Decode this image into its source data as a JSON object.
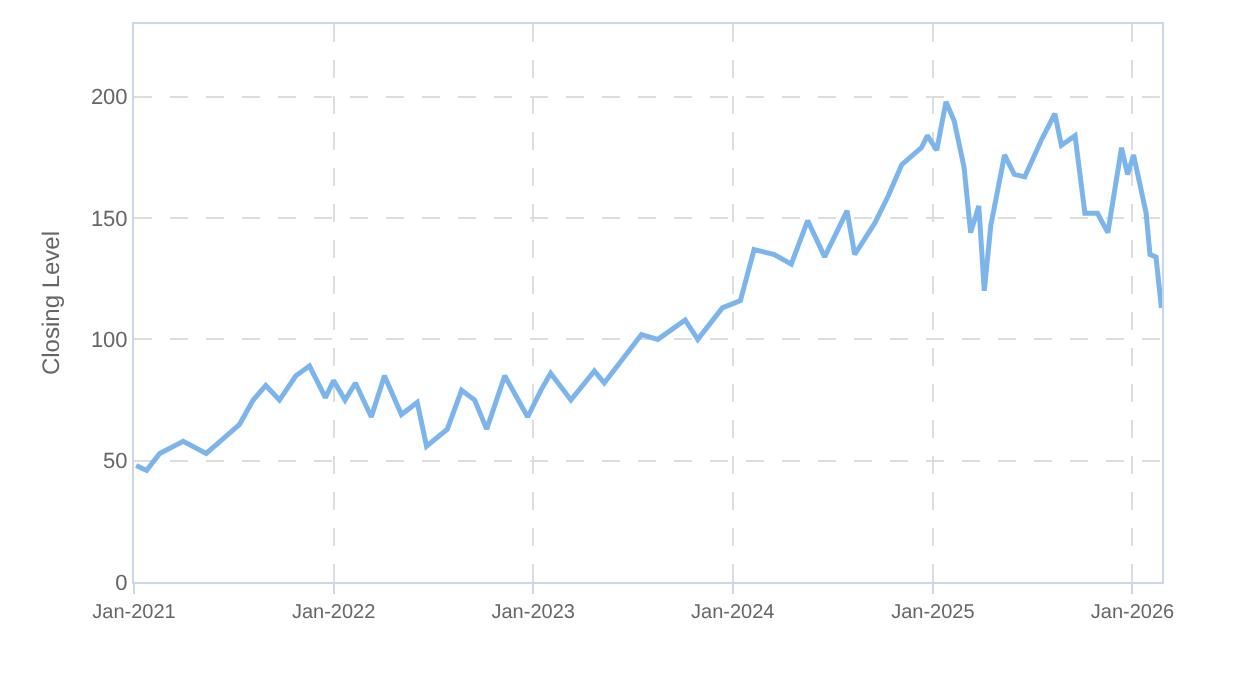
{
  "chart_data": {
    "type": "line",
    "ylabel": "Closing Level",
    "x": [
      "2021-01-05",
      "2021-01-24",
      "2021-02-17",
      "2021-04-01",
      "2021-05-13",
      "2021-06-18",
      "2021-07-13",
      "2021-08-07",
      "2021-08-30",
      "2021-09-24",
      "2021-10-24",
      "2021-11-18",
      "2021-12-17",
      "2022-01-01",
      "2022-01-22",
      "2022-02-10",
      "2022-03-11",
      "2022-04-04",
      "2022-05-05",
      "2022-06-03",
      "2022-06-20",
      "2022-07-28",
      "2022-08-23",
      "2022-09-16",
      "2022-10-08",
      "2022-11-10",
      "2022-12-22",
      "2023-01-15",
      "2023-02-02",
      "2023-03-11",
      "2023-04-23",
      "2023-05-11",
      "2023-07-18",
      "2023-08-17",
      "2023-10-06",
      "2023-10-29",
      "2023-12-13",
      "2024-01-15",
      "2024-02-09",
      "2024-03-17",
      "2024-04-17",
      "2024-05-17",
      "2024-06-17",
      "2024-07-28",
      "2024-08-11",
      "2024-09-17",
      "2024-10-11",
      "2024-11-05",
      "2024-12-11",
      "2024-12-22",
      "2025-01-08",
      "2025-01-25",
      "2025-02-09",
      "2025-02-27",
      "2025-03-11",
      "2025-03-26",
      "2025-04-05",
      "2025-04-17",
      "2025-05-12",
      "2025-05-30",
      "2025-06-18",
      "2025-07-18",
      "2025-08-12",
      "2025-08-24",
      "2025-09-18",
      "2025-10-06",
      "2025-10-29",
      "2025-11-17",
      "2025-12-12",
      "2025-12-23",
      "2026-01-03",
      "2026-01-26",
      "2026-02-02",
      "2026-02-13",
      "2026-02-23"
    ],
    "series": [
      {
        "color": "#7cb5ec",
        "values": [
          48,
          46,
          53,
          58,
          53,
          60,
          65,
          75,
          81,
          75,
          85,
          89,
          76,
          83,
          75,
          82,
          68,
          85,
          69,
          74,
          56,
          63,
          79,
          75,
          63,
          85,
          68,
          79,
          86,
          75,
          87,
          82,
          102,
          100,
          108,
          100,
          113,
          116,
          137,
          135,
          131,
          149,
          134,
          153,
          135,
          148,
          159,
          172,
          179,
          184,
          178,
          198,
          190,
          171,
          144,
          155,
          120,
          147,
          176,
          168,
          167,
          182,
          193,
          180,
          184,
          152,
          152,
          144,
          179,
          168,
          176,
          152,
          135,
          134,
          113
        ]
      }
    ],
    "xlim": [
      "2021-01-01",
      "2026-02-24"
    ],
    "xticks": [
      {
        "value": "2021-01-01",
        "label": "Jan-2021"
      },
      {
        "value": "2022-01-01",
        "label": "Jan-2022"
      },
      {
        "value": "2023-01-01",
        "label": "Jan-2023"
      },
      {
        "value": "2024-01-01",
        "label": "Jan-2024"
      },
      {
        "value": "2025-01-01",
        "label": "Jan-2025"
      },
      {
        "value": "2026-01-01",
        "label": "Jan-2026"
      }
    ],
    "ylim": [
      0,
      230
    ],
    "yticks": [
      0,
      50,
      100,
      150,
      200
    ],
    "grid": true,
    "marker": "none",
    "line_style": "solid"
  }
}
